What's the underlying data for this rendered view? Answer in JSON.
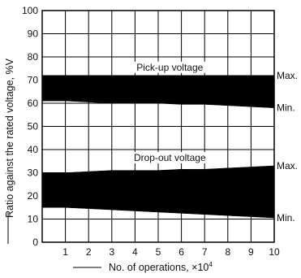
{
  "chart_data": {
    "type": "area",
    "x": [
      0,
      1,
      2,
      3,
      4,
      5,
      6,
      7,
      8,
      9,
      10
    ],
    "xlim": [
      0,
      10
    ],
    "ylim": [
      0,
      100
    ],
    "x_ticks": [
      "1",
      "2",
      "3",
      "4",
      "5",
      "6",
      "7",
      "8",
      "9",
      "10"
    ],
    "y_ticks": [
      "0",
      "10",
      "20",
      "30",
      "40",
      "50",
      "60",
      "70",
      "80",
      "90",
      "100"
    ],
    "xlabel": "No. of operations, ×10",
    "xlabel_exponent": "4",
    "ylabel": "Ratio against the rated voltage, %V",
    "grid": true,
    "bands": [
      {
        "name": "Pick-up voltage",
        "upper": [
          72,
          72,
          72,
          72,
          72,
          72,
          72,
          72,
          72,
          72,
          72
        ],
        "lower": [
          61,
          61,
          60.5,
          60,
          60,
          60,
          59.5,
          59.5,
          59,
          58.5,
          58
        ],
        "max_label": "Max.",
        "min_label": "Min.",
        "color": "#000000"
      },
      {
        "name": "Drop-out voltage",
        "upper": [
          30,
          30,
          30.5,
          31,
          31,
          31,
          31.5,
          31.5,
          32,
          32.5,
          33
        ],
        "lower": [
          15,
          15,
          14.5,
          14,
          13.5,
          13,
          12.5,
          12,
          11.5,
          11,
          10.5
        ],
        "max_label": "Max.",
        "min_label": "Min.",
        "color": "#000000"
      }
    ]
  }
}
